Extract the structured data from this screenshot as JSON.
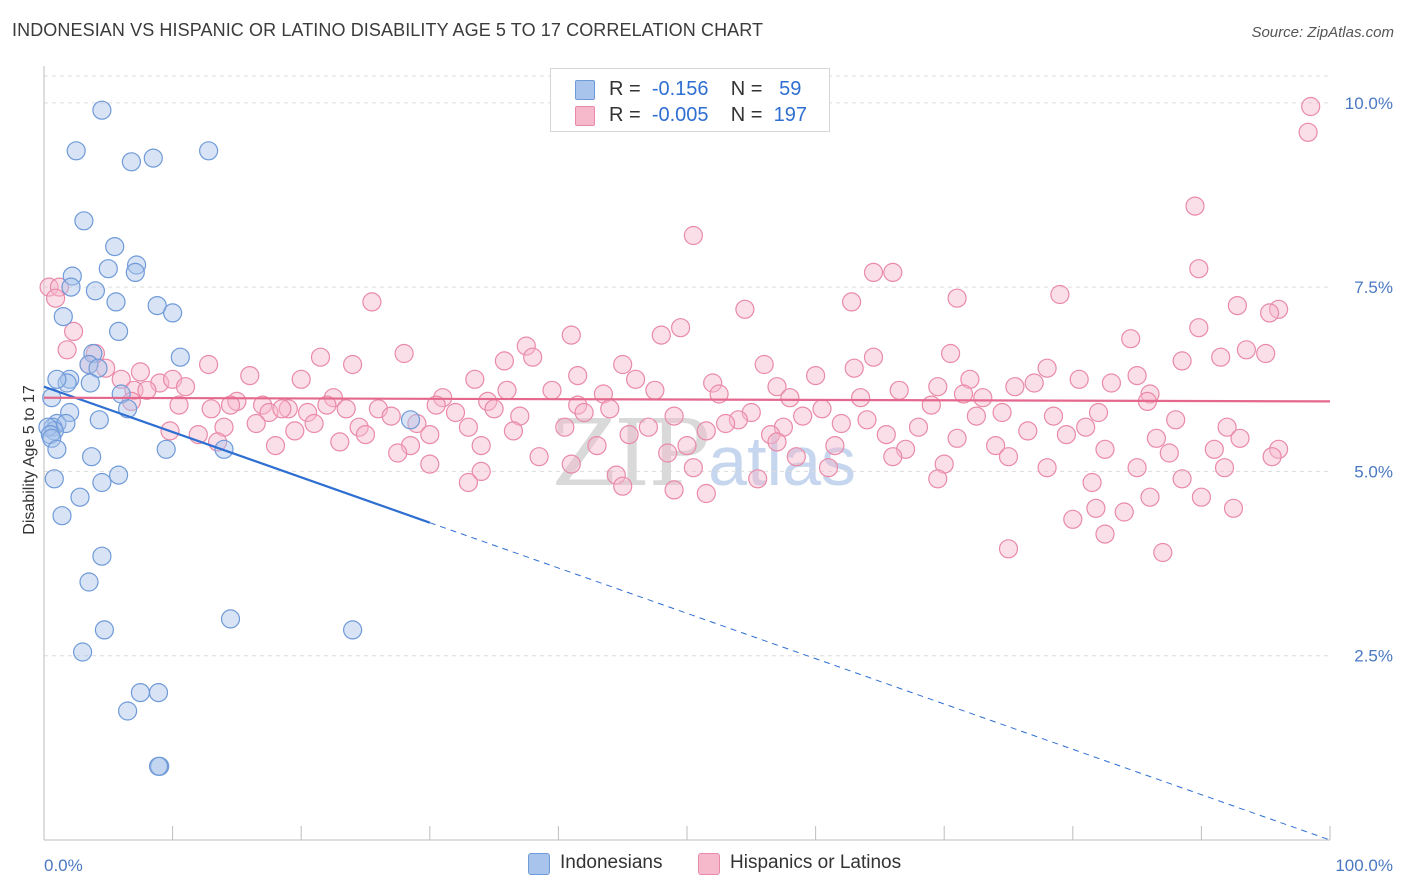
{
  "title": "INDONESIAN VS HISPANIC OR LATINO DISABILITY AGE 5 TO 17 CORRELATION CHART",
  "source": "Source: ZipAtlas.com",
  "watermark": {
    "main": "ZIP",
    "sub": "atlas"
  },
  "legend": {
    "rows": [
      {
        "r_label": "R =",
        "r_value": "-0.156",
        "n_label": "N =",
        "n_value": "59",
        "color": "#a9c4ec",
        "border": "#6f9ad8"
      },
      {
        "r_label": "R =",
        "r_value": "-0.005",
        "n_label": "N =",
        "n_value": "197",
        "color": "#f6b8cb",
        "border": "#e98aa8"
      }
    ]
  },
  "bottom_legend": [
    {
      "label": "Indonesians",
      "color": "#a9c4ec",
      "border": "#6f9ad8"
    },
    {
      "label": "Hispanics or Latinos",
      "color": "#f6b8cb",
      "border": "#e98aa8"
    }
  ],
  "chart_data": {
    "type": "scatter",
    "ylabel": "Disability Age 5 to 17",
    "xlim": [
      0,
      100
    ],
    "ylim": [
      0,
      10.5
    ],
    "x_tick_labels": {
      "min": "0.0%",
      "max": "100.0%"
    },
    "y_ticks": [
      {
        "value": 2.5,
        "label": "2.5%"
      },
      {
        "value": 5.0,
        "label": "5.0%"
      },
      {
        "value": 7.5,
        "label": "7.5%"
      },
      {
        "value": 10.0,
        "label": "10.0%"
      }
    ],
    "grid": true,
    "series": [
      {
        "name": "Indonesians",
        "color": "#6f9ad8",
        "fill": "#a9c4ec",
        "trend": {
          "x0": 0,
          "y0": 6.15,
          "x1": 100,
          "y1": 0.0,
          "solid_until_x": 30
        },
        "points": [
          [
            4.5,
            9.9
          ],
          [
            2.5,
            9.35
          ],
          [
            6.8,
            9.2
          ],
          [
            8.5,
            9.25
          ],
          [
            12.8,
            9.35
          ],
          [
            3.1,
            8.4
          ],
          [
            5.5,
            8.05
          ],
          [
            5.0,
            7.75
          ],
          [
            7.2,
            7.8
          ],
          [
            7.1,
            7.7
          ],
          [
            2.2,
            7.65
          ],
          [
            2.1,
            7.5
          ],
          [
            4.0,
            7.45
          ],
          [
            5.6,
            7.3
          ],
          [
            8.8,
            7.25
          ],
          [
            10.0,
            7.15
          ],
          [
            1.5,
            7.1
          ],
          [
            5.8,
            6.9
          ],
          [
            3.8,
            6.6
          ],
          [
            10.6,
            6.55
          ],
          [
            3.5,
            6.45
          ],
          [
            4.2,
            6.4
          ],
          [
            2.0,
            6.25
          ],
          [
            1.8,
            6.2
          ],
          [
            1.0,
            6.25
          ],
          [
            3.6,
            6.2
          ],
          [
            6.0,
            6.05
          ],
          [
            6.5,
            5.85
          ],
          [
            2.0,
            5.8
          ],
          [
            4.3,
            5.7
          ],
          [
            1.0,
            5.65
          ],
          [
            0.7,
            5.6
          ],
          [
            1.7,
            5.65
          ],
          [
            0.8,
            5.55
          ],
          [
            0.3,
            5.6
          ],
          [
            0.5,
            5.5
          ],
          [
            0.6,
            5.45
          ],
          [
            9.5,
            5.3
          ],
          [
            14.0,
            5.3
          ],
          [
            1.0,
            5.3
          ],
          [
            3.7,
            5.2
          ],
          [
            5.8,
            4.95
          ],
          [
            4.5,
            4.85
          ],
          [
            0.8,
            4.9
          ],
          [
            2.8,
            4.65
          ],
          [
            1.4,
            4.4
          ],
          [
            4.5,
            3.85
          ],
          [
            3.5,
            3.5
          ],
          [
            14.5,
            3.0
          ],
          [
            4.7,
            2.85
          ],
          [
            24.0,
            2.85
          ],
          [
            3.0,
            2.55
          ],
          [
            7.5,
            2.0
          ],
          [
            8.9,
            2.0
          ],
          [
            6.5,
            1.75
          ],
          [
            9.0,
            1.0
          ],
          [
            8.9,
            1.0
          ],
          [
            28.5,
            5.7
          ],
          [
            0.6,
            6.0
          ]
        ]
      },
      {
        "name": "Hispanics or Latinos",
        "color": "#e98aa8",
        "fill": "#f6b8cb",
        "trend": {
          "x0": 0,
          "y0": 6.0,
          "x1": 100,
          "y1": 5.95
        },
        "points": [
          [
            98.5,
            9.95
          ],
          [
            98.3,
            9.6
          ],
          [
            89.5,
            8.6
          ],
          [
            50.5,
            8.2
          ],
          [
            89.8,
            7.75
          ],
          [
            66.0,
            7.7
          ],
          [
            64.5,
            7.7
          ],
          [
            0.4,
            7.5
          ],
          [
            1.2,
            7.5
          ],
          [
            0.9,
            7.35
          ],
          [
            25.5,
            7.3
          ],
          [
            71.0,
            7.35
          ],
          [
            79.0,
            7.4
          ],
          [
            62.8,
            7.3
          ],
          [
            92.8,
            7.25
          ],
          [
            96.0,
            7.2
          ],
          [
            95.3,
            7.15
          ],
          [
            54.5,
            7.2
          ],
          [
            49.5,
            6.95
          ],
          [
            89.8,
            6.95
          ],
          [
            2.3,
            6.9
          ],
          [
            48.0,
            6.85
          ],
          [
            41.0,
            6.85
          ],
          [
            84.5,
            6.8
          ],
          [
            37.5,
            6.7
          ],
          [
            1.8,
            6.65
          ],
          [
            4.0,
            6.6
          ],
          [
            28.0,
            6.6
          ],
          [
            70.5,
            6.6
          ],
          [
            95.0,
            6.6
          ],
          [
            93.5,
            6.65
          ],
          [
            21.5,
            6.55
          ],
          [
            38.0,
            6.55
          ],
          [
            64.5,
            6.55
          ],
          [
            91.5,
            6.55
          ],
          [
            35.8,
            6.5
          ],
          [
            3.5,
            6.45
          ],
          [
            12.8,
            6.45
          ],
          [
            24.0,
            6.45
          ],
          [
            56.0,
            6.45
          ],
          [
            63.0,
            6.4
          ],
          [
            88.5,
            6.5
          ],
          [
            78.0,
            6.4
          ],
          [
            45.0,
            6.45
          ],
          [
            4.8,
            6.4
          ],
          [
            7.5,
            6.35
          ],
          [
            16.0,
            6.3
          ],
          [
            20.0,
            6.25
          ],
          [
            33.5,
            6.25
          ],
          [
            41.5,
            6.3
          ],
          [
            46.0,
            6.25
          ],
          [
            60.0,
            6.3
          ],
          [
            72.0,
            6.25
          ],
          [
            80.5,
            6.25
          ],
          [
            85.0,
            6.3
          ],
          [
            6.0,
            6.25
          ],
          [
            9.0,
            6.2
          ],
          [
            10.0,
            6.25
          ],
          [
            52.0,
            6.2
          ],
          [
            57.0,
            6.15
          ],
          [
            69.5,
            6.15
          ],
          [
            75.5,
            6.15
          ],
          [
            77.0,
            6.2
          ],
          [
            83.0,
            6.2
          ],
          [
            7.0,
            6.1
          ],
          [
            8.0,
            6.1
          ],
          [
            11.0,
            6.15
          ],
          [
            36.0,
            6.1
          ],
          [
            39.5,
            6.1
          ],
          [
            52.5,
            6.05
          ],
          [
            66.5,
            6.1
          ],
          [
            71.5,
            6.05
          ],
          [
            22.5,
            6.0
          ],
          [
            31.0,
            6.0
          ],
          [
            34.5,
            5.95
          ],
          [
            43.5,
            6.05
          ],
          [
            47.5,
            6.1
          ],
          [
            58.0,
            6.0
          ],
          [
            63.5,
            6.0
          ],
          [
            73.0,
            6.0
          ],
          [
            86.0,
            6.05
          ],
          [
            6.8,
            5.95
          ],
          [
            10.5,
            5.9
          ],
          [
            15.0,
            5.95
          ],
          [
            17.0,
            5.9
          ],
          [
            19.0,
            5.85
          ],
          [
            22.0,
            5.9
          ],
          [
            26.0,
            5.85
          ],
          [
            30.5,
            5.9
          ],
          [
            35.0,
            5.85
          ],
          [
            41.5,
            5.9
          ],
          [
            44.0,
            5.85
          ],
          [
            55.0,
            5.8
          ],
          [
            60.5,
            5.85
          ],
          [
            69.0,
            5.9
          ],
          [
            74.5,
            5.8
          ],
          [
            85.8,
            5.95
          ],
          [
            13.0,
            5.85
          ],
          [
            14.5,
            5.9
          ],
          [
            17.5,
            5.8
          ],
          [
            18.5,
            5.85
          ],
          [
            20.5,
            5.8
          ],
          [
            23.5,
            5.85
          ],
          [
            27.0,
            5.75
          ],
          [
            32.0,
            5.8
          ],
          [
            37.0,
            5.75
          ],
          [
            42.0,
            5.8
          ],
          [
            49.0,
            5.75
          ],
          [
            54.0,
            5.7
          ],
          [
            59.0,
            5.75
          ],
          [
            64.0,
            5.7
          ],
          [
            72.5,
            5.75
          ],
          [
            78.5,
            5.75
          ],
          [
            82.0,
            5.8
          ],
          [
            88.0,
            5.7
          ],
          [
            14.0,
            5.6
          ],
          [
            16.5,
            5.65
          ],
          [
            21.0,
            5.65
          ],
          [
            24.5,
            5.6
          ],
          [
            29.0,
            5.65
          ],
          [
            33.0,
            5.6
          ],
          [
            40.5,
            5.6
          ],
          [
            47.0,
            5.6
          ],
          [
            53.0,
            5.65
          ],
          [
            57.5,
            5.6
          ],
          [
            62.0,
            5.65
          ],
          [
            68.0,
            5.6
          ],
          [
            76.5,
            5.55
          ],
          [
            81.0,
            5.6
          ],
          [
            92.0,
            5.6
          ],
          [
            9.8,
            5.55
          ],
          [
            12.0,
            5.5
          ],
          [
            19.5,
            5.55
          ],
          [
            25.0,
            5.5
          ],
          [
            30.0,
            5.5
          ],
          [
            36.5,
            5.55
          ],
          [
            45.5,
            5.5
          ],
          [
            51.5,
            5.55
          ],
          [
            56.5,
            5.5
          ],
          [
            65.5,
            5.5
          ],
          [
            71.0,
            5.45
          ],
          [
            79.5,
            5.5
          ],
          [
            86.5,
            5.45
          ],
          [
            93.0,
            5.45
          ],
          [
            13.5,
            5.4
          ],
          [
            18.0,
            5.35
          ],
          [
            23.0,
            5.4
          ],
          [
            28.5,
            5.35
          ],
          [
            34.0,
            5.35
          ],
          [
            43.0,
            5.35
          ],
          [
            50.0,
            5.35
          ],
          [
            57.0,
            5.4
          ],
          [
            61.5,
            5.35
          ],
          [
            67.0,
            5.3
          ],
          [
            74.0,
            5.35
          ],
          [
            82.5,
            5.3
          ],
          [
            91.0,
            5.3
          ],
          [
            96.0,
            5.3
          ],
          [
            27.5,
            5.25
          ],
          [
            38.5,
            5.2
          ],
          [
            48.5,
            5.25
          ],
          [
            58.5,
            5.2
          ],
          [
            66.0,
            5.2
          ],
          [
            75.0,
            5.2
          ],
          [
            87.5,
            5.25
          ],
          [
            95.5,
            5.2
          ],
          [
            30.0,
            5.1
          ],
          [
            41.0,
            5.1
          ],
          [
            50.5,
            5.05
          ],
          [
            61.0,
            5.05
          ],
          [
            70.0,
            5.1
          ],
          [
            78.0,
            5.05
          ],
          [
            85.0,
            5.05
          ],
          [
            91.8,
            5.05
          ],
          [
            34.0,
            5.0
          ],
          [
            44.5,
            4.95
          ],
          [
            55.5,
            4.9
          ],
          [
            69.5,
            4.9
          ],
          [
            81.5,
            4.85
          ],
          [
            88.5,
            4.9
          ],
          [
            33.0,
            4.85
          ],
          [
            45.0,
            4.8
          ],
          [
            49.0,
            4.75
          ],
          [
            51.5,
            4.7
          ],
          [
            86.0,
            4.65
          ],
          [
            90.0,
            4.65
          ],
          [
            92.5,
            4.5
          ],
          [
            84.0,
            4.45
          ],
          [
            80.0,
            4.35
          ],
          [
            82.5,
            4.15
          ],
          [
            75.0,
            3.95
          ],
          [
            87.0,
            3.9
          ],
          [
            81.8,
            4.5
          ]
        ]
      }
    ]
  }
}
